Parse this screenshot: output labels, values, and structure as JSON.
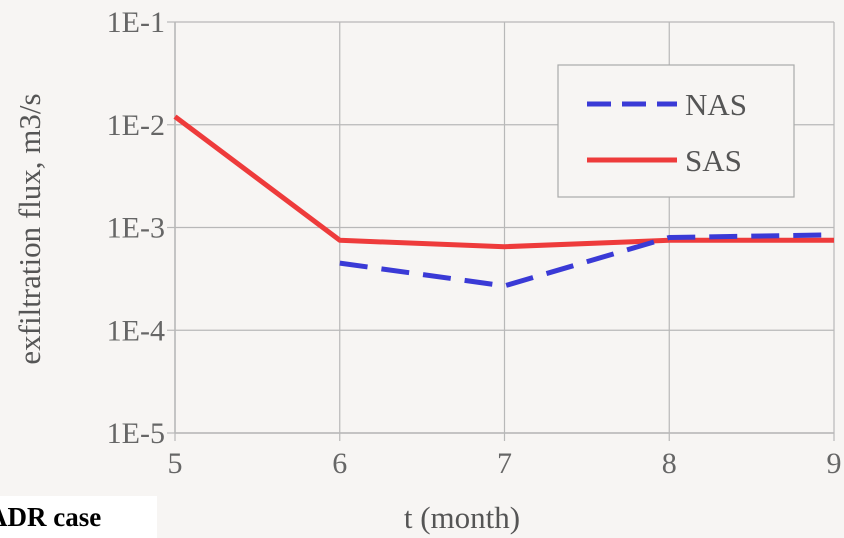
{
  "chart_data": {
    "type": "line",
    "title": "",
    "xlabel": "t (month)",
    "ylabel": "exfiltration flux, m3/s",
    "x_ticks": [
      5,
      6,
      7,
      8,
      9
    ],
    "x_tick_labels": [
      "5",
      "6",
      "7",
      "8",
      "9"
    ],
    "xlim": [
      5,
      9
    ],
    "y_scale": "log",
    "ylim": [
      1e-05,
      0.1
    ],
    "y_ticks": [
      1e-05,
      0.0001,
      0.001,
      0.01,
      0.1
    ],
    "y_tick_labels": [
      "1E-5",
      "1E-4",
      "1E-3",
      "1E-2",
      "1E-1"
    ],
    "grid": true,
    "legend_position": "top-right",
    "series": [
      {
        "name": "NAS",
        "color": "#3a3ad6",
        "line_style": "dashed",
        "x": [
          6,
          7,
          8,
          9
        ],
        "values": [
          0.00045,
          0.00027,
          0.0008,
          0.00085
        ]
      },
      {
        "name": "SAS",
        "color": "#ee3b3b",
        "line_style": "solid",
        "x": [
          5,
          6,
          7,
          8,
          9
        ],
        "values": [
          0.012,
          0.00075,
          0.00065,
          0.00075,
          0.00075
        ]
      }
    ]
  },
  "caption": "ADR case"
}
